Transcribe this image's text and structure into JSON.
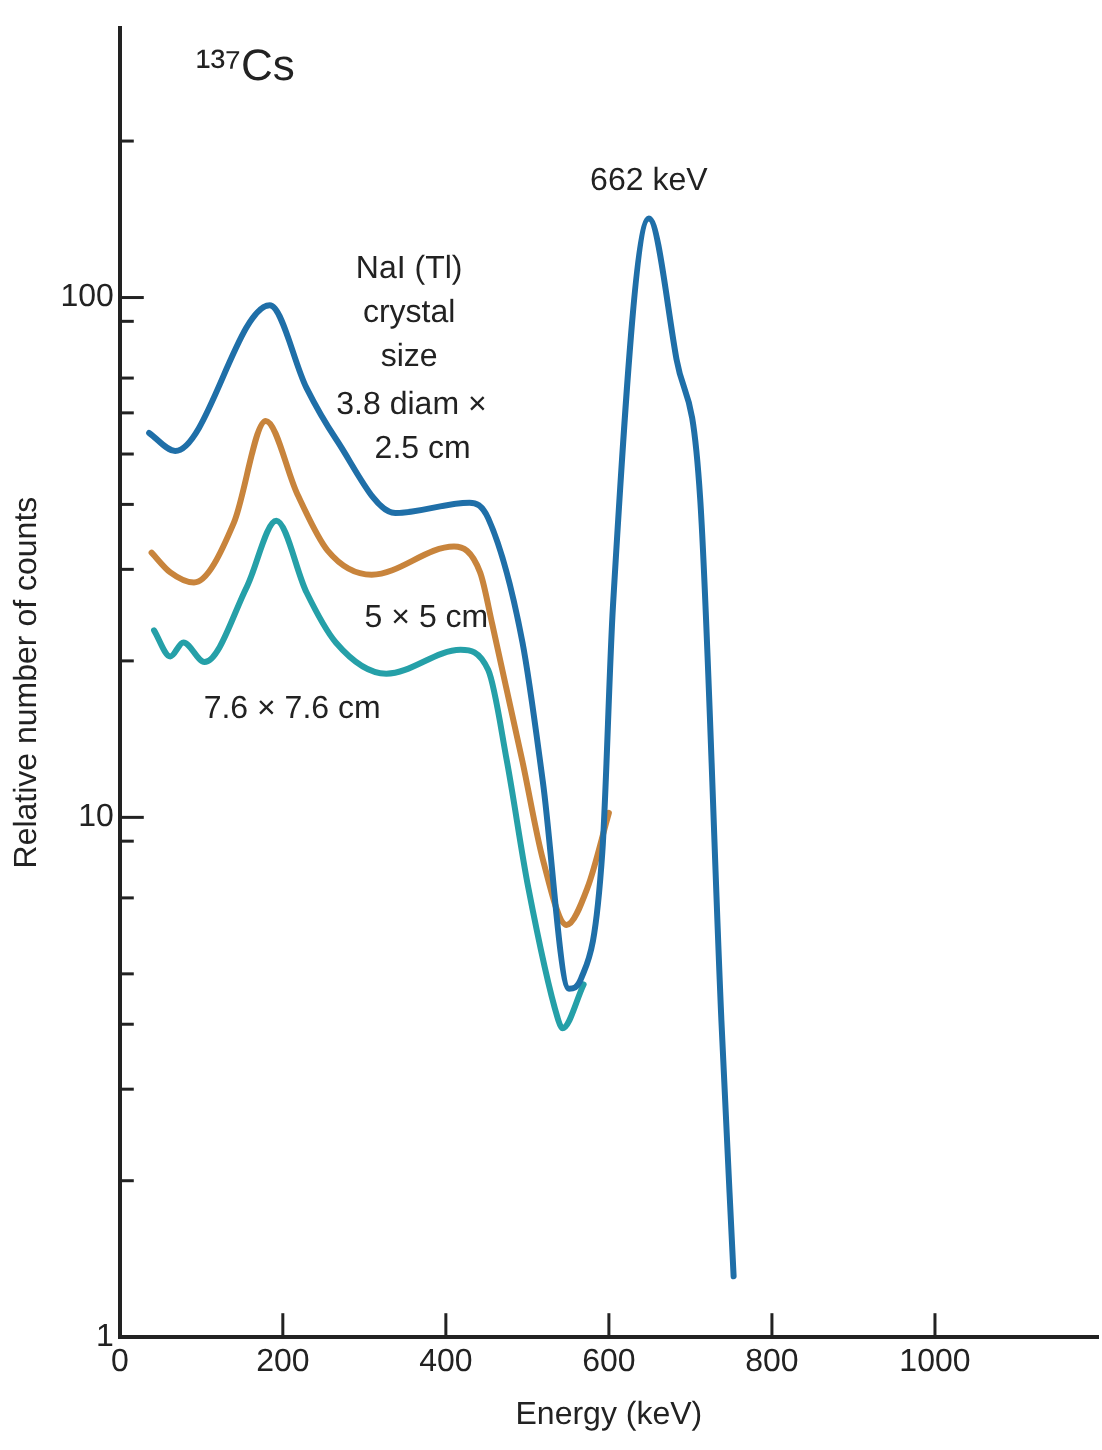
{
  "chart_data": {
    "type": "line",
    "title": "¹³⁷Cs",
    "xlabel": "Energy (keV)",
    "ylabel": "Relative number of counts",
    "legend_title": "NaI (Tl)\ncrystal\nsize",
    "log": "y",
    "legend": false,
    "marker": "none",
    "line_style": "solid",
    "xlim": [
      0,
      1200
    ],
    "xticks": [
      0,
      200,
      400,
      600,
      800,
      1000
    ],
    "ylim": [
      1,
      330
    ],
    "yticks": [
      1,
      {
        "value": 2,
        "label": null
      },
      {
        "value": 3,
        "label": null
      },
      {
        "value": 4,
        "label": null
      },
      {
        "value": 5,
        "label": null
      },
      {
        "value": 7,
        "label": null
      },
      {
        "value": 9,
        "label": null
      },
      10,
      {
        "value": 20,
        "label": null
      },
      {
        "value": 30,
        "label": null
      },
      {
        "value": 40,
        "label": null
      },
      {
        "value": 50,
        "label": null
      },
      {
        "value": 60,
        "label": null
      },
      {
        "value": 70,
        "label": null
      },
      {
        "value": 90,
        "label": null
      },
      100,
      {
        "value": 200,
        "label": null
      }
    ],
    "annotations": [
      {
        "text": "662 keV",
        "x": 649,
        "y": 142
      }
    ],
    "series": [
      {
        "name": "3.8 diam × 2.5 cm",
        "color": "#1f6fa8",
        "x": [
          36,
          68,
          184,
          229,
          265,
          338,
          429,
          452,
          494,
          519,
          551,
          566,
          592,
          605,
          649,
          683,
          712,
          738,
          753
        ],
        "values": [
          54.9,
          50.7,
          96.6,
          67,
          53.5,
          38.5,
          40.3,
          37.6,
          21.7,
          11.7,
          4.68,
          4.9,
          8.6,
          25.5,
          142,
          76,
          41,
          4.07,
          1.31
        ]
      },
      {
        "name": "5 × 5 cm",
        "color": "#c8843c",
        "x": [
          39,
          62,
          91,
          140,
          179,
          218,
          255,
          309,
          410,
          442,
          457,
          494,
          519,
          548,
          574,
          600
        ],
        "values": [
          32.3,
          29.6,
          28.3,
          36.9,
          57.9,
          41.8,
          32.6,
          29.3,
          33.2,
          29.6,
          23.5,
          12.8,
          8.3,
          6.21,
          7.34,
          10.2
        ]
      },
      {
        "name": "7.6 × 7.6 cm",
        "color": "#25a0a8",
        "x": [
          42,
          62,
          78,
          104,
          156,
          192,
          229,
          265,
          327,
          418,
          452,
          475,
          501,
          538,
          543,
          569
        ],
        "values": [
          22.9,
          20.4,
          21.7,
          19.9,
          27.8,
          37.2,
          27.1,
          21.7,
          18.9,
          21,
          19.2,
          12.8,
          7.34,
          4.07,
          3.93,
          4.77
        ]
      }
    ]
  }
}
